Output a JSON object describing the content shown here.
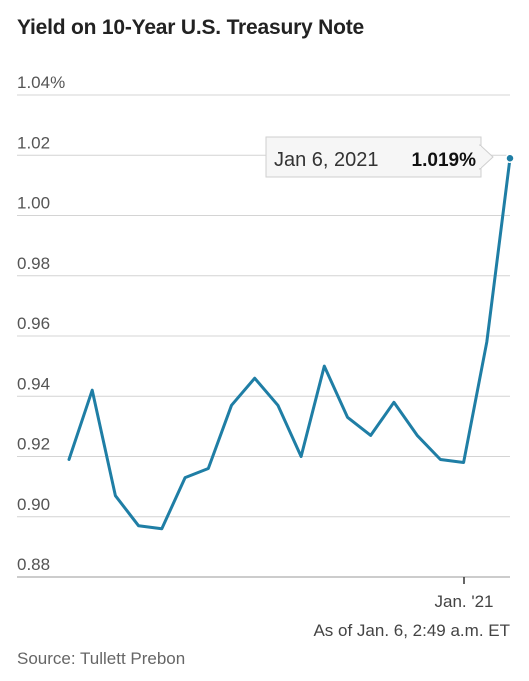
{
  "title": "Yield on 10-Year U.S. Treasury Note",
  "source": "Source: Tullett Prebon",
  "as_of": "As of Jan. 6, 2:49 a.m. ET",
  "tooltip": {
    "date": "Jan 6, 2021",
    "value": "1.019%"
  },
  "colors": {
    "line": "#1f7ea5",
    "grid": "#d4d4d4",
    "axis": "#999999",
    "text": "#555555"
  },
  "chart_data": {
    "type": "line",
    "title": "Yield on 10-Year U.S. Treasury Note",
    "xlabel": "",
    "ylabel": "",
    "ylim": [
      0.88,
      1.04
    ],
    "yticks": [
      1.04,
      1.02,
      1.0,
      0.98,
      0.96,
      0.94,
      0.92,
      0.9,
      0.88
    ],
    "ytick_labels": [
      "1.04%",
      "1.02",
      "1.00",
      "0.98",
      "0.96",
      "0.94",
      "0.92",
      "0.90",
      "0.88"
    ],
    "x_tick_labels": [
      {
        "index": 18,
        "label": "Jan. '21"
      }
    ],
    "grid": true,
    "series": [
      {
        "values": [
          0.919,
          0.942,
          0.907,
          0.897,
          0.896,
          0.913,
          0.916,
          0.937,
          0.946,
          0.937,
          0.92,
          0.95,
          0.933,
          0.927,
          0.938,
          0.927,
          0.919,
          0.918,
          0.958,
          1.019
        ]
      }
    ]
  }
}
